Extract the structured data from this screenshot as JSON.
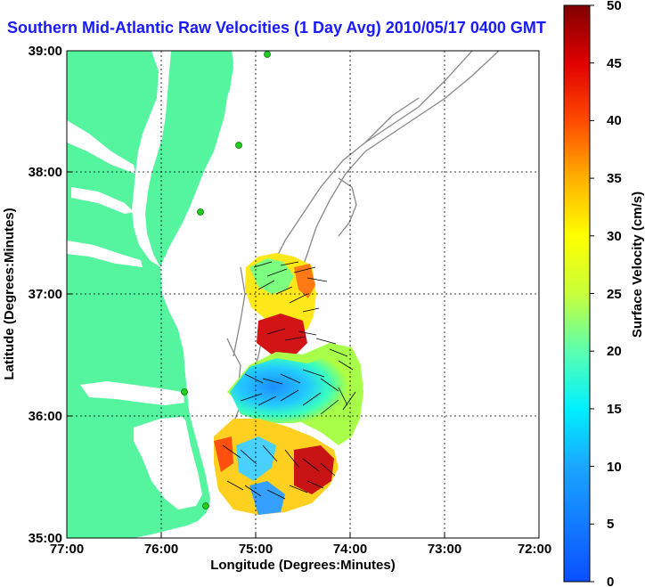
{
  "title": "Southern Mid-Atlantic Raw Velocities (1 Day Avg) 2010/05/17 0400 GMT",
  "map": {
    "xlabel": "Longitude (Degrees:Minutes)",
    "ylabel": "Latitude (Degrees:Minutes)",
    "x_ticks": [
      "77:00",
      "76:00",
      "75:00",
      "74:00",
      "73:00",
      "72:00"
    ],
    "y_ticks": [
      "39:00",
      "38:00",
      "37:00",
      "36:00",
      "35:00"
    ],
    "colors": {
      "land": "#55f5a0",
      "water": "#ffffff",
      "bathymetry": "#888888",
      "station": "#22cc22"
    }
  },
  "colorbar": {
    "label": "Surface Velocity (cm/s)",
    "ticks": [
      "50",
      "45",
      "40",
      "35",
      "30",
      "25",
      "20",
      "15",
      "10",
      "5",
      "0"
    ],
    "range": [
      0,
      50
    ]
  }
}
